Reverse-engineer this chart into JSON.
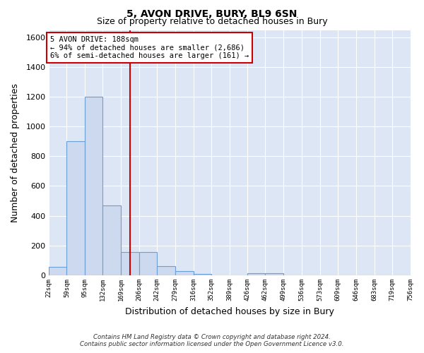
{
  "title": "5, AVON DRIVE, BURY, BL9 6SN",
  "subtitle": "Size of property relative to detached houses in Bury",
  "xlabel": "Distribution of detached houses by size in Bury",
  "ylabel": "Number of detached properties",
  "bar_color": "#ccd9ee",
  "bar_edge_color": "#6a9fd8",
  "background_color": "#dde6f5",
  "grid_color": "#ffffff",
  "vline_value": 188,
  "vline_color": "#cc0000",
  "bin_edges": [
    22,
    59,
    95,
    132,
    169,
    206,
    242,
    279,
    316,
    352,
    389,
    426,
    462,
    499,
    536,
    573,
    609,
    646,
    683,
    719,
    756
  ],
  "bin_labels": [
    "22sqm",
    "59sqm",
    "95sqm",
    "132sqm",
    "169sqm",
    "206sqm",
    "242sqm",
    "279sqm",
    "316sqm",
    "352sqm",
    "389sqm",
    "426sqm",
    "462sqm",
    "499sqm",
    "536sqm",
    "573sqm",
    "609sqm",
    "646sqm",
    "683sqm",
    "719sqm",
    "756sqm"
  ],
  "bar_heights": [
    55,
    900,
    1200,
    470,
    155,
    155,
    60,
    25,
    10,
    0,
    0,
    15,
    15,
    0,
    0,
    0,
    0,
    0,
    0,
    0
  ],
  "ylim": [
    0,
    1650
  ],
  "yticks": [
    0,
    200,
    400,
    600,
    800,
    1000,
    1200,
    1400,
    1600
  ],
  "annotation_title": "5 AVON DRIVE: 188sqm",
  "annotation_line1": "← 94% of detached houses are smaller (2,686)",
  "annotation_line2": "6% of semi-detached houses are larger (161) →",
  "annotation_box_edge": "#cc0000",
  "footnote1": "Contains HM Land Registry data © Crown copyright and database right 2024.",
  "footnote2": "Contains public sector information licensed under the Open Government Licence v3.0."
}
